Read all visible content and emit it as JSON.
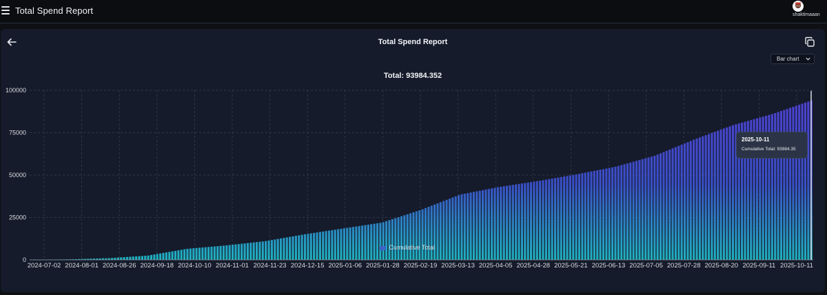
{
  "app": {
    "title": "Total Spend Report"
  },
  "user": {
    "name": "shaktimaaan"
  },
  "report": {
    "title": "Total Spend Report",
    "chart_type_selected": "Bar chart",
    "total_label": "Total: 93984.352"
  },
  "tooltip": {
    "date": "2025-10-11",
    "row": "Cumulative Total: 93984.35"
  },
  "legend": {
    "label": "Cumulative Total"
  },
  "colors": {
    "bar_top": "#4f3fd0",
    "bar_bottom": "#1fb2c0",
    "grid": "#3a4254",
    "panel": "#151b2a"
  },
  "chart_data": {
    "type": "bar",
    "series": [
      {
        "name": "Cumulative Total"
      }
    ],
    "x_tick_labels": [
      "2024-07-02",
      "2024-08-01",
      "2024-08-26",
      "2024-09-18",
      "2024-10-10",
      "2024-11-01",
      "2024-11-23",
      "2024-12-15",
      "2025-01-06",
      "2025-01-28",
      "2025-02-19",
      "2025-03-13",
      "2025-04-05",
      "2025-04-28",
      "2025-05-21",
      "2025-06-13",
      "2025-07-05",
      "2025-07-28",
      "2025-08-20",
      "2025-09-11",
      "2025-10-11"
    ],
    "y_tick_labels": [
      "0",
      "25000",
      "50000",
      "75000",
      "100000"
    ],
    "ylim": [
      0,
      100000
    ],
    "x": [
      "2024-07-02",
      "2024-08-01",
      "2024-08-26",
      "2024-09-18",
      "2024-10-10",
      "2024-11-01",
      "2024-11-23",
      "2024-12-15",
      "2025-01-06",
      "2025-01-28",
      "2025-02-19",
      "2025-03-13",
      "2025-04-05",
      "2025-04-28",
      "2025-05-21",
      "2025-06-13",
      "2025-07-05",
      "2025-07-28",
      "2025-08-20",
      "2025-09-11",
      "2025-10-11"
    ],
    "values": [
      0,
      300,
      1000,
      2500,
      6500,
      8500,
      11000,
      15000,
      18500,
      22000,
      29500,
      38500,
      43000,
      46500,
      50500,
      55000,
      61500,
      71000,
      79500,
      86000,
      93984.35
    ],
    "grid": true,
    "legend_position": "bottom"
  }
}
